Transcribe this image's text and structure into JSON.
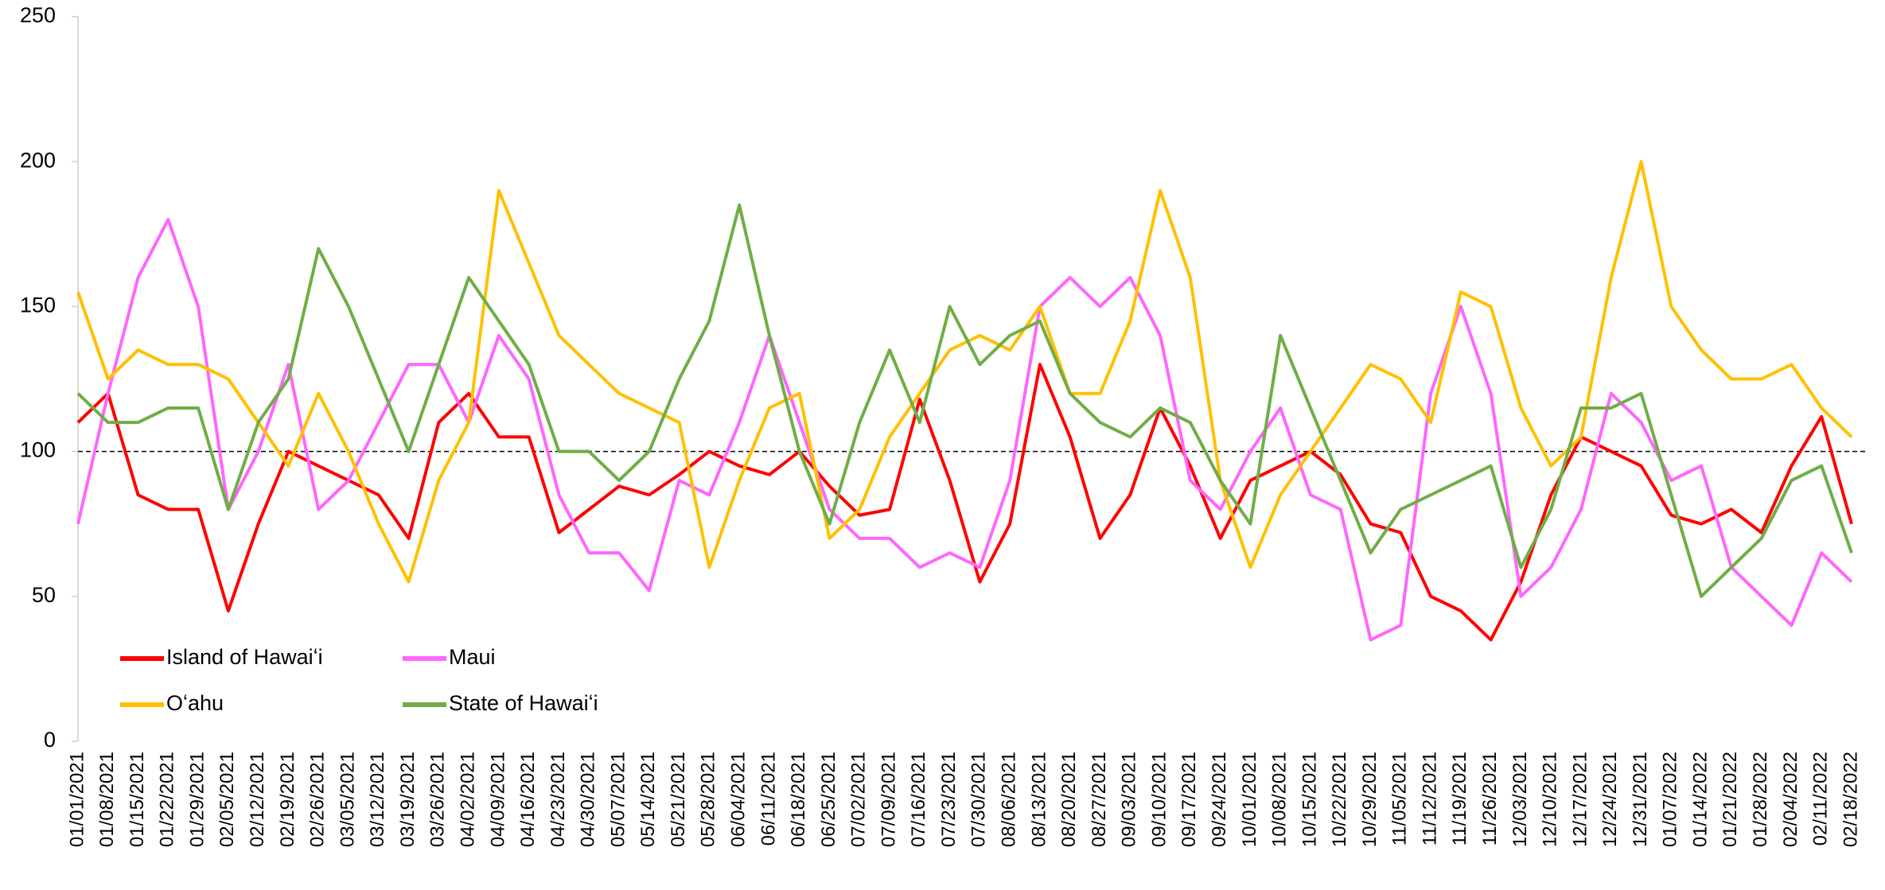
{
  "chart_data": {
    "type": "line",
    "categories": [
      "01/01/2021",
      "01/08/2021",
      "01/15/2021",
      "01/22/2021",
      "01/29/2021",
      "02/05/2021",
      "02/12/2021",
      "02/19/2021",
      "02/26/2021",
      "03/05/2021",
      "03/12/2021",
      "03/19/2021",
      "03/26/2021",
      "04/02/2021",
      "04/09/2021",
      "04/16/2021",
      "04/23/2021",
      "04/30/2021",
      "05/07/2021",
      "05/14/2021",
      "05/21/2021",
      "05/28/2021",
      "06/04/2021",
      "06/11/2021",
      "06/18/2021",
      "06/25/2021",
      "07/02/2021",
      "07/09/2021",
      "07/16/2021",
      "07/23/2021",
      "07/30/2021",
      "08/06/2021",
      "08/13/2021",
      "08/20/2021",
      "08/27/2021",
      "09/03/2021",
      "09/10/2021",
      "09/17/2021",
      "09/24/2021",
      "10/01/2021",
      "10/08/2021",
      "10/15/2021",
      "10/22/2021",
      "10/29/2021",
      "11/05/2021",
      "11/12/2021",
      "11/19/2021",
      "11/26/2021",
      "12/03/2021",
      "12/10/2021",
      "12/17/2021",
      "12/24/2021",
      "12/31/2021",
      "01/07/2022",
      "01/14/2022",
      "01/21/2022",
      "01/28/2022",
      "02/04/2022",
      "02/11/2022",
      "02/18/2022"
    ],
    "series": [
      {
        "name": "Island of Hawaiʻi",
        "color": "#ff0000",
        "values": [
          110,
          120,
          85,
          80,
          80,
          45,
          75,
          100,
          95,
          90,
          85,
          70,
          110,
          120,
          105,
          105,
          72,
          80,
          88,
          85,
          92,
          100,
          95,
          92,
          100,
          88,
          78,
          80,
          118,
          90,
          55,
          75,
          130,
          105,
          70,
          85,
          115,
          95,
          70,
          90,
          95,
          100,
          92,
          75,
          72,
          50,
          45,
          35,
          55,
          85,
          105,
          100,
          95,
          78,
          75,
          80,
          72,
          95,
          112,
          75
        ]
      },
      {
        "name": "Maui",
        "color": "#ff66ff",
        "values": [
          75,
          120,
          160,
          180,
          150,
          80,
          100,
          130,
          80,
          90,
          110,
          130,
          130,
          110,
          140,
          125,
          85,
          65,
          65,
          52,
          90,
          85,
          110,
          140,
          110,
          80,
          70,
          70,
          60,
          65,
          60,
          90,
          150,
          160,
          150,
          160,
          140,
          90,
          80,
          100,
          115,
          85,
          80,
          35,
          40,
          120,
          150,
          120,
          50,
          60,
          80,
          120,
          110,
          90,
          95,
          60,
          50,
          40,
          65,
          55
        ]
      },
      {
        "name": "Oʻahu",
        "color": "#ffc000",
        "values": [
          155,
          125,
          135,
          130,
          130,
          125,
          110,
          95,
          120,
          100,
          75,
          55,
          90,
          110,
          190,
          165,
          140,
          130,
          120,
          115,
          110,
          60,
          90,
          115,
          120,
          70,
          80,
          105,
          120,
          135,
          140,
          135,
          150,
          120,
          120,
          145,
          190,
          160,
          90,
          60,
          85,
          100,
          115,
          130,
          125,
          110,
          155,
          150,
          115,
          95,
          105,
          160,
          200,
          150,
          135,
          125,
          125,
          130,
          115,
          105
        ]
      },
      {
        "name": "State of Hawaiʻi",
        "color": "#70ad47",
        "values": [
          120,
          110,
          110,
          115,
          115,
          80,
          110,
          125,
          170,
          150,
          125,
          100,
          130,
          160,
          145,
          130,
          100,
          100,
          90,
          100,
          125,
          145,
          185,
          140,
          100,
          75,
          110,
          135,
          110,
          150,
          130,
          140,
          145,
          120,
          110,
          105,
          115,
          110,
          90,
          75,
          140,
          115,
          90,
          65,
          80,
          85,
          90,
          95,
          60,
          80,
          115,
          115,
          120,
          85,
          50,
          60,
          70,
          90,
          95,
          65
        ]
      }
    ],
    "ylim": [
      0,
      250
    ],
    "yticks": [
      0,
      50,
      100,
      150,
      200,
      250
    ],
    "reference_line": 100
  }
}
